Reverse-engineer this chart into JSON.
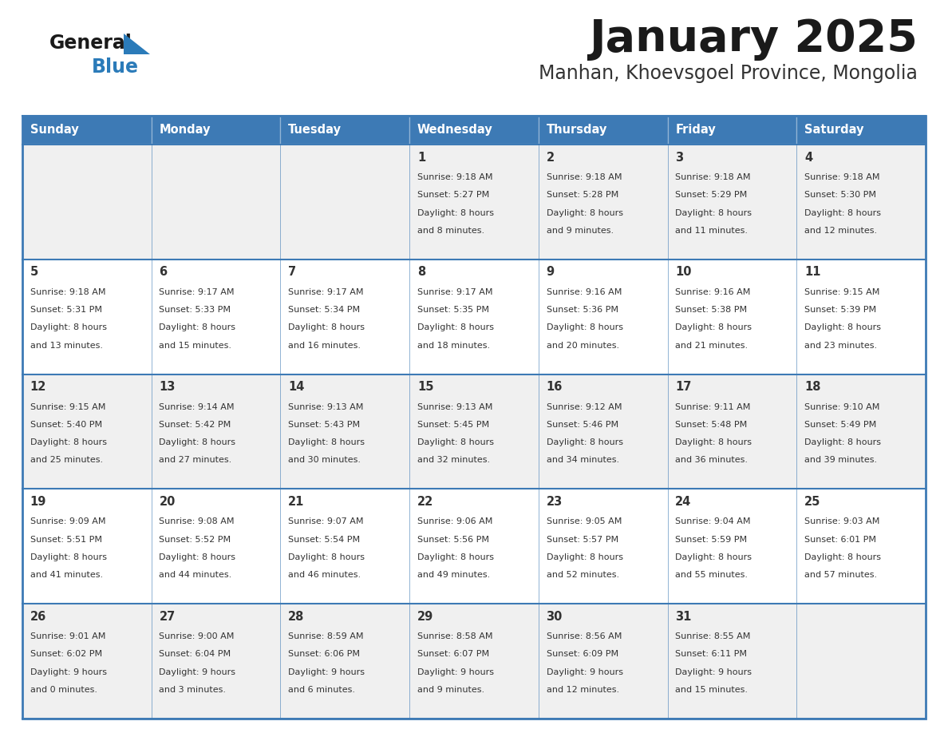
{
  "title": "January 2025",
  "subtitle": "Manhan, Khoevsgoel Province, Mongolia",
  "days_of_week": [
    "Sunday",
    "Monday",
    "Tuesday",
    "Wednesday",
    "Thursday",
    "Friday",
    "Saturday"
  ],
  "header_bg": "#3D7AB5",
  "header_text": "#FFFFFF",
  "row_bg_odd": "#F0F0F0",
  "row_bg_even": "#FFFFFF",
  "cell_text_color": "#333333",
  "day_num_color": "#333333",
  "border_color": "#3D7AB5",
  "title_color": "#1a1a1a",
  "subtitle_color": "#333333",
  "general_color": "#1a1a1a",
  "blue_color": "#2B7BB9",
  "calendar_data": [
    [
      {
        "day": "",
        "sunrise": "",
        "sunset": "",
        "daylight": ""
      },
      {
        "day": "",
        "sunrise": "",
        "sunset": "",
        "daylight": ""
      },
      {
        "day": "",
        "sunrise": "",
        "sunset": "",
        "daylight": ""
      },
      {
        "day": "1",
        "sunrise": "9:18 AM",
        "sunset": "5:27 PM",
        "daylight": "8 hours\nand 8 minutes."
      },
      {
        "day": "2",
        "sunrise": "9:18 AM",
        "sunset": "5:28 PM",
        "daylight": "8 hours\nand 9 minutes."
      },
      {
        "day": "3",
        "sunrise": "9:18 AM",
        "sunset": "5:29 PM",
        "daylight": "8 hours\nand 11 minutes."
      },
      {
        "day": "4",
        "sunrise": "9:18 AM",
        "sunset": "5:30 PM",
        "daylight": "8 hours\nand 12 minutes."
      }
    ],
    [
      {
        "day": "5",
        "sunrise": "9:18 AM",
        "sunset": "5:31 PM",
        "daylight": "8 hours\nand 13 minutes."
      },
      {
        "day": "6",
        "sunrise": "9:17 AM",
        "sunset": "5:33 PM",
        "daylight": "8 hours\nand 15 minutes."
      },
      {
        "day": "7",
        "sunrise": "9:17 AM",
        "sunset": "5:34 PM",
        "daylight": "8 hours\nand 16 minutes."
      },
      {
        "day": "8",
        "sunrise": "9:17 AM",
        "sunset": "5:35 PM",
        "daylight": "8 hours\nand 18 minutes."
      },
      {
        "day": "9",
        "sunrise": "9:16 AM",
        "sunset": "5:36 PM",
        "daylight": "8 hours\nand 20 minutes."
      },
      {
        "day": "10",
        "sunrise": "9:16 AM",
        "sunset": "5:38 PM",
        "daylight": "8 hours\nand 21 minutes."
      },
      {
        "day": "11",
        "sunrise": "9:15 AM",
        "sunset": "5:39 PM",
        "daylight": "8 hours\nand 23 minutes."
      }
    ],
    [
      {
        "day": "12",
        "sunrise": "9:15 AM",
        "sunset": "5:40 PM",
        "daylight": "8 hours\nand 25 minutes."
      },
      {
        "day": "13",
        "sunrise": "9:14 AM",
        "sunset": "5:42 PM",
        "daylight": "8 hours\nand 27 minutes."
      },
      {
        "day": "14",
        "sunrise": "9:13 AM",
        "sunset": "5:43 PM",
        "daylight": "8 hours\nand 30 minutes."
      },
      {
        "day": "15",
        "sunrise": "9:13 AM",
        "sunset": "5:45 PM",
        "daylight": "8 hours\nand 32 minutes."
      },
      {
        "day": "16",
        "sunrise": "9:12 AM",
        "sunset": "5:46 PM",
        "daylight": "8 hours\nand 34 minutes."
      },
      {
        "day": "17",
        "sunrise": "9:11 AM",
        "sunset": "5:48 PM",
        "daylight": "8 hours\nand 36 minutes."
      },
      {
        "day": "18",
        "sunrise": "9:10 AM",
        "sunset": "5:49 PM",
        "daylight": "8 hours\nand 39 minutes."
      }
    ],
    [
      {
        "day": "19",
        "sunrise": "9:09 AM",
        "sunset": "5:51 PM",
        "daylight": "8 hours\nand 41 minutes."
      },
      {
        "day": "20",
        "sunrise": "9:08 AM",
        "sunset": "5:52 PM",
        "daylight": "8 hours\nand 44 minutes."
      },
      {
        "day": "21",
        "sunrise": "9:07 AM",
        "sunset": "5:54 PM",
        "daylight": "8 hours\nand 46 minutes."
      },
      {
        "day": "22",
        "sunrise": "9:06 AM",
        "sunset": "5:56 PM",
        "daylight": "8 hours\nand 49 minutes."
      },
      {
        "day": "23",
        "sunrise": "9:05 AM",
        "sunset": "5:57 PM",
        "daylight": "8 hours\nand 52 minutes."
      },
      {
        "day": "24",
        "sunrise": "9:04 AM",
        "sunset": "5:59 PM",
        "daylight": "8 hours\nand 55 minutes."
      },
      {
        "day": "25",
        "sunrise": "9:03 AM",
        "sunset": "6:01 PM",
        "daylight": "8 hours\nand 57 minutes."
      }
    ],
    [
      {
        "day": "26",
        "sunrise": "9:01 AM",
        "sunset": "6:02 PM",
        "daylight": "9 hours\nand 0 minutes."
      },
      {
        "day": "27",
        "sunrise": "9:00 AM",
        "sunset": "6:04 PM",
        "daylight": "9 hours\nand 3 minutes."
      },
      {
        "day": "28",
        "sunrise": "8:59 AM",
        "sunset": "6:06 PM",
        "daylight": "9 hours\nand 6 minutes."
      },
      {
        "day": "29",
        "sunrise": "8:58 AM",
        "sunset": "6:07 PM",
        "daylight": "9 hours\nand 9 minutes."
      },
      {
        "day": "30",
        "sunrise": "8:56 AM",
        "sunset": "6:09 PM",
        "daylight": "9 hours\nand 12 minutes."
      },
      {
        "day": "31",
        "sunrise": "8:55 AM",
        "sunset": "6:11 PM",
        "daylight": "9 hours\nand 15 minutes."
      },
      {
        "day": "",
        "sunrise": "",
        "sunset": "",
        "daylight": ""
      }
    ]
  ]
}
